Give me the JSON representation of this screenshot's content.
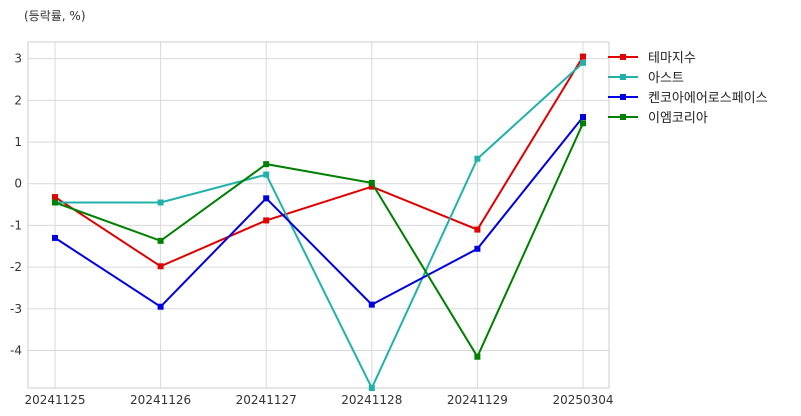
{
  "chart_data": {
    "type": "line",
    "ylabel": "(등락률, %)",
    "categories": [
      "20241125",
      "20241126",
      "20241127",
      "20241128",
      "20241129",
      "20250304"
    ],
    "ylim": [
      -4.9,
      3.4
    ],
    "yticks": [
      3,
      2,
      1,
      0,
      -1,
      -2,
      -3,
      -4
    ],
    "grid": true,
    "legend_position": "outside-right-top",
    "series": [
      {
        "name": "테마지수",
        "color": "#e00000",
        "values": [
          -0.32,
          -1.98,
          -0.88,
          -0.07,
          -1.1,
          3.05
        ]
      },
      {
        "name": "아스트",
        "color": "#20b2aa",
        "values": [
          -0.45,
          -0.45,
          0.22,
          -4.9,
          0.6,
          2.9
        ]
      },
      {
        "name": "켄코아에어로스페이스",
        "color": "#0000e0",
        "values": [
          -1.3,
          -2.95,
          -0.35,
          -2.9,
          -1.56,
          1.6
        ]
      },
      {
        "name": "이엠코리아",
        "color": "#008000",
        "values": [
          -0.45,
          -1.37,
          0.47,
          0.02,
          -4.15,
          1.45
        ]
      }
    ]
  }
}
